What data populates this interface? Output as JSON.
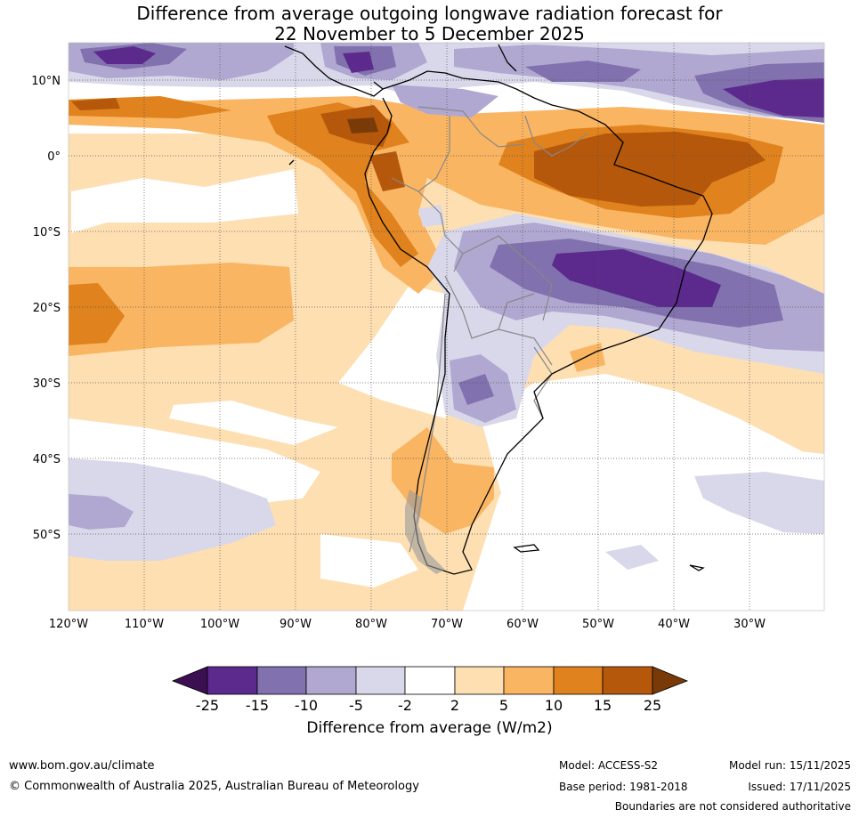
{
  "title": {
    "line1": "Difference from average outgoing longwave radiation forecast for",
    "line2": "22 November to 5 December 2025"
  },
  "map": {
    "lat_labels": [
      "10°N",
      "0°",
      "10°S",
      "20°S",
      "30°S",
      "40°S",
      "50°S"
    ],
    "lon_labels": [
      "120°W",
      "110°W",
      "100°W",
      "90°W",
      "80°W",
      "70°W",
      "60°W",
      "50°W",
      "40°W",
      "30°W"
    ]
  },
  "colorbar": {
    "ticks": [
      "-25",
      "-15",
      "-10",
      "-5",
      "-2",
      "2",
      "5",
      "10",
      "15",
      "25"
    ],
    "colors": {
      "extend_low": "#3b0f52",
      "bin1": "#5b2a8c",
      "bin2": "#8171ae",
      "bin3": "#b0a8d0",
      "bin4": "#d9d8ea",
      "bin5": "#ffffff",
      "bin6": "#fddfb2",
      "bin7": "#f9b562",
      "bin8": "#e0821d",
      "bin9": "#b5580b",
      "extend_high": "#7a3a08"
    },
    "label": "Difference from average (W/m2)"
  },
  "footer": {
    "website": "www.bom.gov.au/climate",
    "copyright": "© Commonwealth of Australia 2025, Australian Bureau of Meteorology",
    "model": "Model: ACCESS-S2",
    "base_period": "Base period: 1981-2018",
    "model_run": "Model run: 15/11/2025",
    "issued": "Issued: 17/11/2025",
    "disclaimer": "Boundaries are not considered authoritative"
  }
}
